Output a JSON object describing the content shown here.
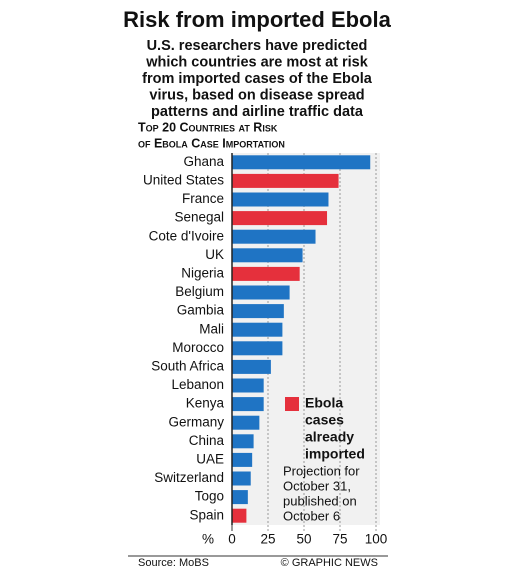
{
  "chart_data": {
    "type": "bar",
    "orientation": "horizontal",
    "title": "Risk from imported Ebola",
    "subtitle": [
      "U.S. researchers have predicted",
      "which countries are most at risk",
      "from imported cases of the Ebola",
      "virus, based on disease spread",
      "patterns and airline traffic data"
    ],
    "chart_heading": [
      "Top 20 Countries at Risk",
      "of Ebola Case Importation"
    ],
    "categories": [
      "Ghana",
      "United States",
      "France",
      "Senegal",
      "Cote d'Ivoire",
      "UK",
      "Nigeria",
      "Belgium",
      "Gambia",
      "Mali",
      "Morocco",
      "South Africa",
      "Lebanon",
      "Kenya",
      "Germany",
      "China",
      "UAE",
      "Switzerland",
      "Togo",
      "Spain"
    ],
    "values": [
      96,
      74,
      67,
      66,
      58,
      49,
      47,
      40,
      36,
      35,
      35,
      27,
      22,
      22,
      19,
      15,
      14,
      13,
      11,
      10
    ],
    "colors": [
      "#1f74c4",
      "#e5303c",
      "#1f74c4",
      "#e5303c",
      "#1f74c4",
      "#1f74c4",
      "#e5303c",
      "#1f74c4",
      "#1f74c4",
      "#1f74c4",
      "#1f74c4",
      "#1f74c4",
      "#1f74c4",
      "#1f74c4",
      "#1f74c4",
      "#1f74c4",
      "#1f74c4",
      "#1f74c4",
      "#1f74c4",
      "#e5303c"
    ],
    "xlim": [
      0,
      100
    ],
    "xticks": [
      0,
      25,
      50,
      75,
      100
    ],
    "x_axis_label": "%",
    "grid": true,
    "legend": {
      "label": [
        "Ebola",
        "cases",
        "already",
        "imported"
      ],
      "color": "#e5303c"
    },
    "annotation": [
      "Projection for",
      "October 31,",
      "published on",
      "October 6"
    ],
    "source": "Source: MoBS",
    "credit": "© GRAPHIC NEWS"
  }
}
